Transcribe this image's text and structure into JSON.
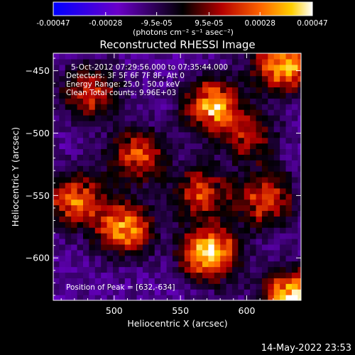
{
  "chart_data": {
    "type": "heatmap",
    "title": "Reconstructed RHESSI Image",
    "xlabel": "Heliocentric X (arcsec)",
    "ylabel": "Heliocentric Y (arcsec)",
    "xlim": [
      454,
      641
    ],
    "ylim": [
      -634,
      -436
    ],
    "x_ticks": [
      500,
      550,
      600
    ],
    "y_ticks": [
      -450,
      -500,
      -550,
      -600
    ],
    "colorbar": {
      "range": [
        -0.00047,
        0.00047
      ],
      "ticks": [
        "-0.00047",
        "-0.00028",
        "-9.5e-05",
        "9.5e-05",
        "0.00028",
        "0.00047"
      ],
      "tick_values": [
        -0.00047,
        -0.00028,
        -9.5e-05,
        9.5e-05,
        0.00028,
        0.00047
      ],
      "units_label": "(photons cm⁻² s⁻¹ asec⁻²)"
    },
    "info_lines": [
      "5-Oct-2012 07:29:56.000 to 07:35:44.000",
      "Detectors: 3F 5F 6F 7F 8F, Att 0",
      "Energy Range: 25.0 - 50.0 keV",
      "Clean    Total counts: 9.96E+03"
    ],
    "peak_label": "Position of Peak = [632,-634]",
    "sources": [
      {
        "x": 625,
        "y": -447,
        "value": 0.0004
      },
      {
        "x": 572,
        "y": -480,
        "value": 0.00035
      },
      {
        "x": 515,
        "y": -520,
        "value": 0.00025
      },
      {
        "x": 480,
        "y": -470,
        "value": 0.0002
      },
      {
        "x": 468,
        "y": -555,
        "value": 0.00025
      },
      {
        "x": 505,
        "y": -578,
        "value": 0.00033
      },
      {
        "x": 570,
        "y": -598,
        "value": 0.00043
      },
      {
        "x": 632,
        "y": -634,
        "value": 0.00047
      },
      {
        "x": 612,
        "y": -555,
        "value": 0.00022
      },
      {
        "x": 563,
        "y": -550,
        "value": 0.00018
      },
      {
        "x": 600,
        "y": -505,
        "value": 0.00012
      }
    ]
  },
  "footer_timestamp": "14-May-2022 23:53"
}
